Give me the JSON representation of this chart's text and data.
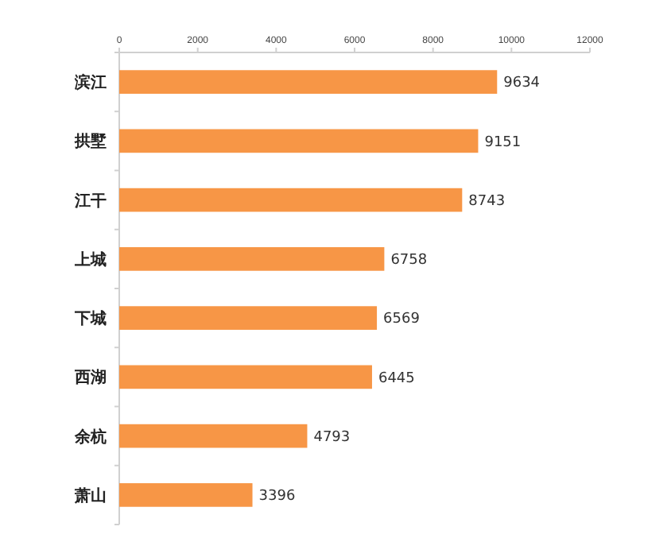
{
  "chart_data": {
    "type": "bar",
    "orientation": "horizontal",
    "categories": [
      "滨江",
      "拱墅",
      "江干",
      "上城",
      "下城",
      "西湖",
      "余杭",
      "萧山"
    ],
    "values": [
      9634,
      9151,
      8743,
      6758,
      6569,
      6445,
      4793,
      3396
    ],
    "color": "#f79646",
    "xlim": [
      0,
      12000
    ],
    "xticks": [
      0,
      2000,
      4000,
      6000,
      8000,
      10000,
      12000
    ],
    "data_labels": true
  }
}
